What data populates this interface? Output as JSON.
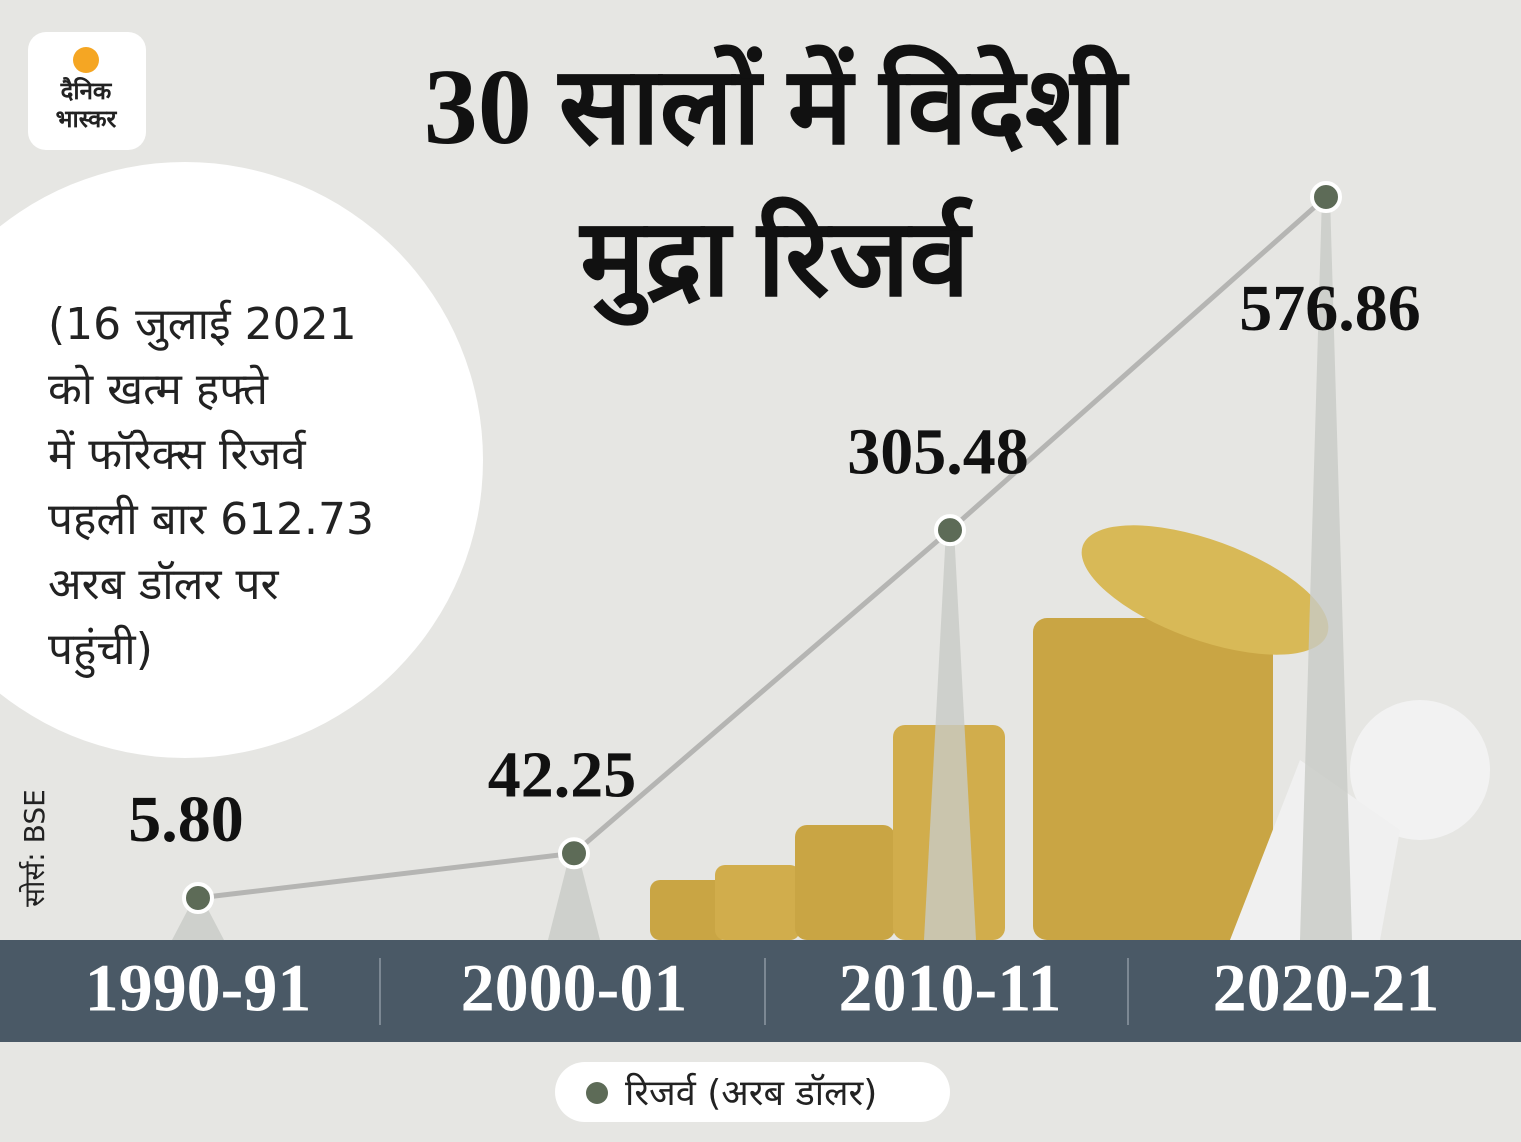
{
  "chart_data": {
    "type": "line",
    "brand": [
      "दैनिक",
      "भास्कर"
    ],
    "title": [
      "30 सालों में विदेशी",
      "मुद्रा रिजर्व"
    ],
    "annotation": [
      "(16 जुलाई 2021",
      "को खत्म हफ्ते",
      "में फॉरेक्स रिजर्व",
      "पहली बार 612.73",
      "अरब डॉलर पर",
      "पहुंची)"
    ],
    "source": "सोर्स: BSE",
    "categories": [
      "1990-91",
      "2000-01",
      "2010-11",
      "2020-21"
    ],
    "series": [
      {
        "name": "रिजर्व (अरब डॉलर)",
        "color": "#5d6b57",
        "values": [
          5.8,
          42.25,
          305.48,
          576.86
        ],
        "value_labels": [
          "5.80",
          "42.25",
          "305.48",
          "576.86"
        ]
      }
    ]
  }
}
